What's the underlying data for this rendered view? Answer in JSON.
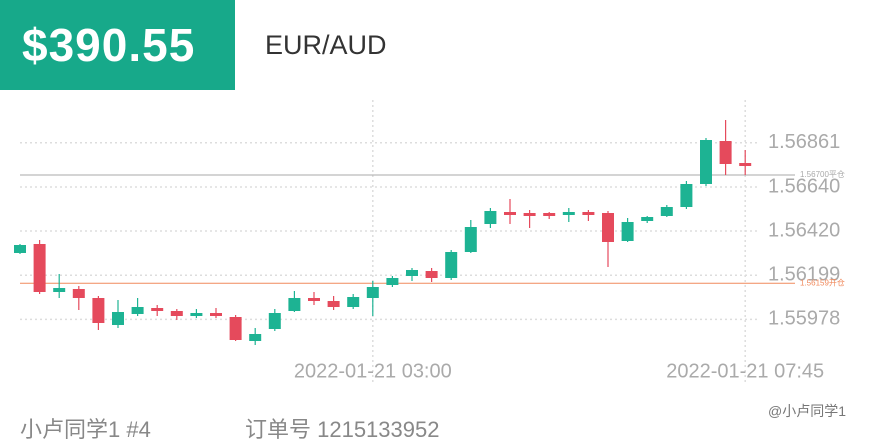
{
  "header": {
    "price": "$390.55",
    "pair": "EUR/AUD"
  },
  "footer": {
    "user": "小卢同学1 #4",
    "order": "订单号 1215133952",
    "watermark": "@小卢同学1"
  },
  "chart_data": {
    "type": "candlestick",
    "categories": [
      null,
      null,
      null,
      null,
      null,
      null,
      null,
      null,
      null,
      null,
      null,
      null,
      null,
      null,
      null,
      null,
      null,
      null,
      "2022-01-21 03:00",
      null,
      null,
      null,
      null,
      null,
      null,
      null,
      null,
      null,
      null,
      null,
      null,
      null,
      null,
      null,
      null,
      null,
      null,
      "2022-01-21 07:45"
    ],
    "open": [
      1.5631,
      1.56355,
      1.56115,
      1.5613,
      1.56085,
      1.5595,
      1.56005,
      1.56035,
      1.5602,
      1.55995,
      1.5601,
      1.5599,
      1.5587,
      1.5593,
      1.5602,
      1.56085,
      1.5607,
      1.5604,
      1.56085,
      1.5615,
      1.56195,
      1.5622,
      1.56185,
      1.56315,
      1.56455,
      1.56515,
      1.5651,
      1.5651,
      1.565,
      1.56515,
      1.5651,
      1.5637,
      1.5647,
      1.56495,
      1.5654,
      1.56655,
      1.5687,
      1.5676
    ],
    "high": [
      1.56355,
      1.56375,
      1.56205,
      1.56145,
      1.56095,
      1.56075,
      1.56085,
      1.5605,
      1.5603,
      1.5603,
      1.56035,
      1.56,
      1.55935,
      1.5603,
      1.5612,
      1.56115,
      1.56095,
      1.56105,
      1.5617,
      1.56195,
      1.56235,
      1.56235,
      1.56325,
      1.56475,
      1.56535,
      1.5658,
      1.56525,
      1.56515,
      1.56535,
      1.56525,
      1.5652,
      1.56485,
      1.56495,
      1.5655,
      1.5667,
      1.56885,
      1.56975,
      1.56825
    ],
    "low": [
      1.56305,
      1.56105,
      1.56085,
      1.56025,
      1.55925,
      1.55935,
      1.55995,
      1.55995,
      1.55975,
      1.55985,
      1.55985,
      1.5587,
      1.5585,
      1.5592,
      1.56015,
      1.5605,
      1.56025,
      1.5603,
      1.55995,
      1.5614,
      1.5617,
      1.56165,
      1.56175,
      1.5631,
      1.56435,
      1.56455,
      1.56435,
      1.5648,
      1.56465,
      1.5647,
      1.5624,
      1.56365,
      1.5646,
      1.5649,
      1.5653,
      1.56645,
      1.567,
      1.567
    ],
    "close": [
      1.5635,
      1.56115,
      1.56135,
      1.56085,
      1.5596,
      1.56015,
      1.5604,
      1.5602,
      1.55995,
      1.5601,
      1.55995,
      1.55875,
      1.55905,
      1.5601,
      1.56085,
      1.5607,
      1.5604,
      1.5609,
      1.5614,
      1.56185,
      1.56225,
      1.56185,
      1.56315,
      1.5644,
      1.5652,
      1.565,
      1.56495,
      1.56495,
      1.56515,
      1.565,
      1.56365,
      1.56465,
      1.5649,
      1.5654,
      1.56655,
      1.56875,
      1.56755,
      1.56745
    ],
    "up_color": "#1db393",
    "down_color": "#e54a5c",
    "ylim": [
      1.55825,
      1.5705
    ],
    "yticks": [
      1.56861,
      {
        "value": 1.5664,
        "label": "1.56640"
      },
      {
        "value": 1.5642,
        "label": "1.56420"
      },
      1.56199,
      1.55978
    ],
    "ref_lines": [
      {
        "value": 1.567,
        "label": "1.56700平仓",
        "color": "#aaaaaa"
      },
      {
        "value": 1.56159,
        "label": "1.56159开仓",
        "color": "#f08a5d"
      }
    ],
    "grid": true
  }
}
